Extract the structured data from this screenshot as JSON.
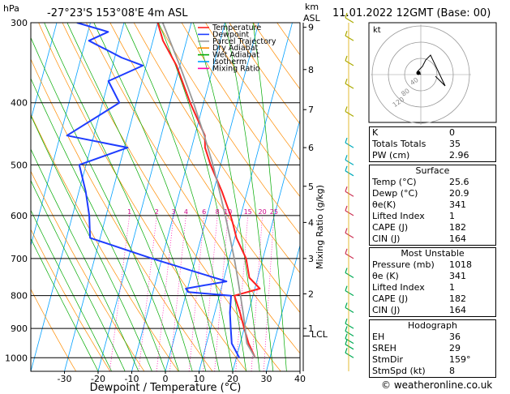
{
  "header": {
    "hpa_label": "hPa",
    "location": "-27°23'S  153°08'E  4m  ASL",
    "km_label": "km",
    "asl_label": "ASL",
    "datetime": "11.01.2022  12GMT  (Base: 00)"
  },
  "axes": {
    "xlabel": "Dewpoint / Temperature (°C)",
    "ylabel_right": "Mixing Ratio (g/kg)",
    "lcl_label": "LCL"
  },
  "legend": [
    {
      "name": "Temperature",
      "color": "#ff2020"
    },
    {
      "name": "Dewpoint",
      "color": "#1e3cff"
    },
    {
      "name": "Parcel Trajectory",
      "color": "#999999"
    },
    {
      "name": "Dry Adiabat",
      "color": "#ff8c00"
    },
    {
      "name": "Wet Adiabat",
      "color": "#00aa00"
    },
    {
      "name": "Isotherm",
      "color": "#00a0ff"
    },
    {
      "name": "Mixing Ratio",
      "color": "#ff00aa"
    }
  ],
  "chart_data": {
    "type": "line",
    "x_axis": {
      "ticks": [
        -30,
        -20,
        -10,
        0,
        10,
        20,
        30,
        40
      ],
      "range": [
        -40,
        40
      ]
    },
    "y_axis_pressure_hpa": {
      "ticks": [
        300,
        400,
        500,
        600,
        700,
        800,
        900,
        1000
      ],
      "range": [
        300,
        1050
      ],
      "scale": "log",
      "skewed": true
    },
    "mixing_ratio_labels": [
      "1",
      "2",
      "3",
      "4",
      "6",
      "8",
      "10",
      "15",
      "20",
      "25"
    ],
    "km_asl_ticks": [
      "1",
      "2",
      "3",
      "4",
      "5",
      "6",
      "7",
      "8",
      "9"
    ],
    "series": [
      {
        "name": "Temperature",
        "points": [
          [
            1000,
            25.6
          ],
          [
            950,
            22.5
          ],
          [
            900,
            20.0
          ],
          [
            850,
            17.5
          ],
          [
            800,
            14.5
          ],
          [
            780,
            21.5
          ],
          [
            750,
            17.5
          ],
          [
            700,
            15.0
          ],
          [
            650,
            10.5
          ],
          [
            620,
            8.5
          ],
          [
            600,
            7.0
          ],
          [
            550,
            2.5
          ],
          [
            500,
            -3.0
          ],
          [
            470,
            -6.0
          ],
          [
            450,
            -7.0
          ],
          [
            400,
            -14.0
          ],
          [
            350,
            -21.0
          ],
          [
            320,
            -27.0
          ],
          [
            300,
            -30.0
          ]
        ]
      },
      {
        "name": "Dewpoint",
        "points": [
          [
            1000,
            20.9
          ],
          [
            950,
            17.5
          ],
          [
            900,
            16.0
          ],
          [
            850,
            14.5
          ],
          [
            800,
            13.5
          ],
          [
            790,
            0.5
          ],
          [
            780,
            -0.5
          ],
          [
            760,
            11.0
          ],
          [
            700,
            -13.0
          ],
          [
            650,
            -33.0
          ],
          [
            600,
            -35.0
          ],
          [
            550,
            -38.0
          ],
          [
            500,
            -42.0
          ],
          [
            470,
            -29.0
          ],
          [
            450,
            -48.0
          ],
          [
            400,
            -35.0
          ],
          [
            370,
            -40.0
          ],
          [
            350,
            -31.0
          ],
          [
            340,
            -38.0
          ],
          [
            320,
            -49.0
          ],
          [
            310,
            -44.0
          ],
          [
            300,
            -54.0
          ]
        ]
      },
      {
        "name": "Parcel Trajectory",
        "points": [
          [
            1000,
            25.6
          ],
          [
            950,
            22.0
          ],
          [
            920,
            20.9
          ],
          [
            900,
            20.3
          ],
          [
            850,
            18.4
          ],
          [
            800,
            16.3
          ],
          [
            750,
            14.0
          ],
          [
            700,
            11.5
          ],
          [
            650,
            8.6
          ],
          [
            600,
            5.4
          ],
          [
            550,
            1.8
          ],
          [
            500,
            -2.3
          ],
          [
            450,
            -7.2
          ],
          [
            400,
            -13.0
          ],
          [
            350,
            -20.0
          ],
          [
            300,
            -28.5
          ]
        ]
      }
    ]
  },
  "table": {
    "indices": [
      {
        "label": "K",
        "value": "0"
      },
      {
        "label": "Totals Totals",
        "value": "35"
      },
      {
        "label": "PW (cm)",
        "value": "2.96"
      }
    ],
    "surface": {
      "title": "Surface",
      "rows": [
        {
          "label": "Temp (°C)",
          "value": "25.6"
        },
        {
          "label": "Dewp (°C)",
          "value": "20.9"
        },
        {
          "label": "θe(K)",
          "value": "341"
        },
        {
          "label": "Lifted Index",
          "value": "1"
        },
        {
          "label": "CAPE (J)",
          "value": "182"
        },
        {
          "label": "CIN (J)",
          "value": "164"
        }
      ]
    },
    "most_unstable": {
      "title": "Most Unstable",
      "rows": [
        {
          "label": "Pressure (mb)",
          "value": "1018"
        },
        {
          "label": "θe (K)",
          "value": "341"
        },
        {
          "label": "Lifted Index",
          "value": "1"
        },
        {
          "label": "CAPE (J)",
          "value": "182"
        },
        {
          "label": "CIN (J)",
          "value": "164"
        }
      ]
    },
    "hodograph": {
      "title": "Hodograph",
      "rows": [
        {
          "label": "EH",
          "value": "36"
        },
        {
          "label": "SREH",
          "value": "29"
        },
        {
          "label": "StmDir",
          "value": "159°"
        },
        {
          "label": "StmSpd (kt)",
          "value": "8"
        }
      ]
    }
  },
  "hodo": {
    "unit_label": "kt",
    "ring_labels": [
      "40",
      "80",
      "120"
    ]
  },
  "footer": {
    "copyright": "© weatheronline.co.uk"
  }
}
